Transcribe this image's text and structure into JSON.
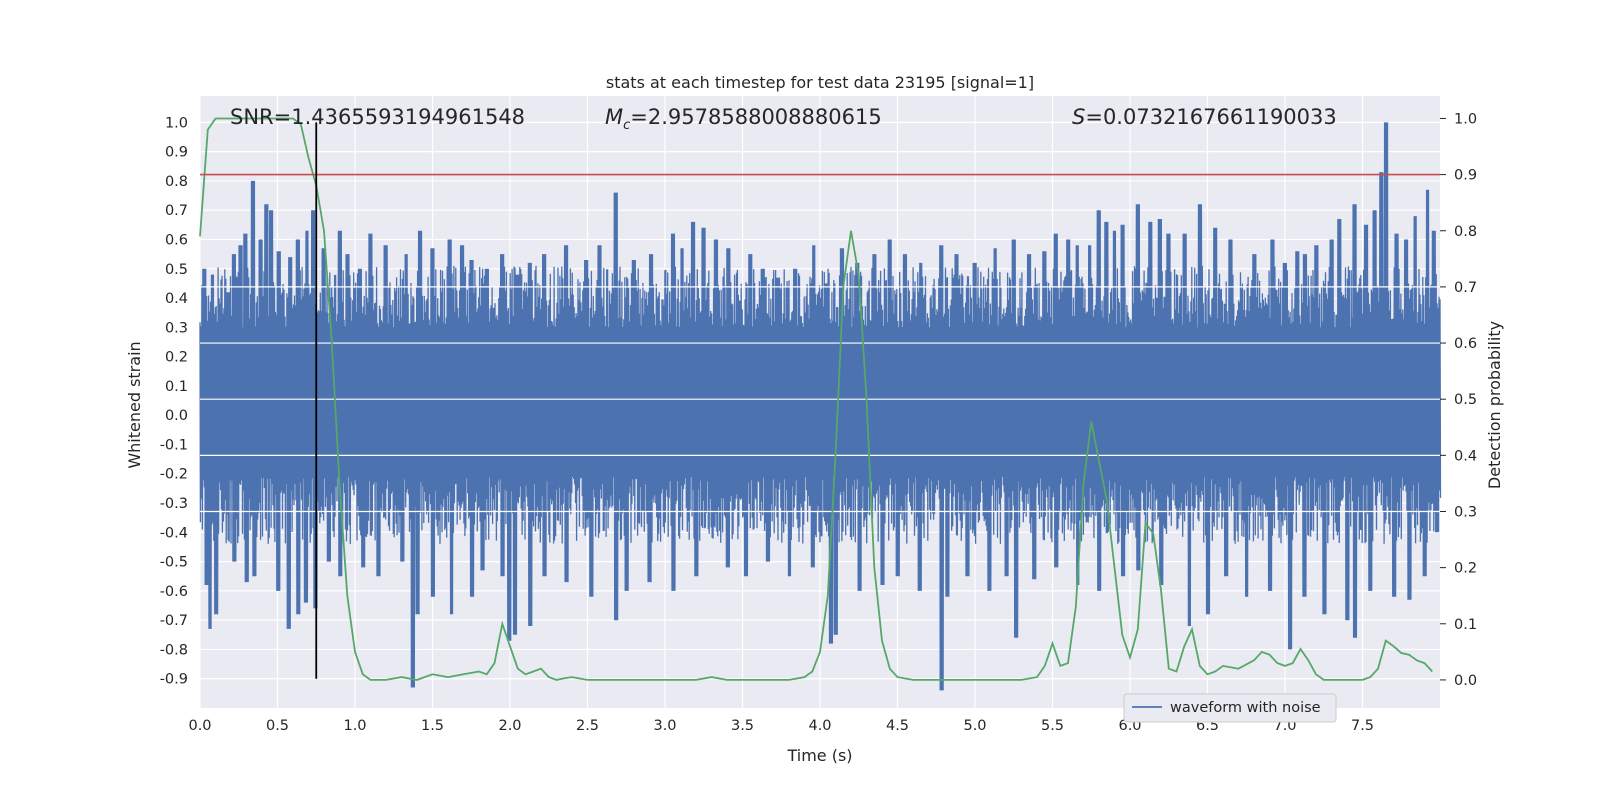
{
  "chart_data": {
    "type": "line",
    "title": "stats at each timestep for test data 23195 [signal=1]",
    "xlabel": "Time (s)",
    "ylabel": "Whitened strain",
    "y2label": "Detection probability",
    "xlim": [
      0.0,
      8.0
    ],
    "ylim": [
      -1.0,
      1.09
    ],
    "y2lim": [
      -0.05,
      1.04
    ],
    "xticks": [
      "0.0",
      "0.5",
      "1.0",
      "1.5",
      "2.0",
      "2.5",
      "3.0",
      "3.5",
      "4.0",
      "4.5",
      "5.0",
      "5.5",
      "6.0",
      "6.5",
      "7.0",
      "7.5"
    ],
    "yticks": [
      "-0.9",
      "-0.8",
      "-0.7",
      "-0.6",
      "-0.5",
      "-0.4",
      "-0.3",
      "-0.2",
      "-0.1",
      "0.0",
      "0.1",
      "0.2",
      "0.3",
      "0.4",
      "0.5",
      "0.6",
      "0.7",
      "0.8",
      "0.9",
      "1.0"
    ],
    "y2ticks": [
      "0.0",
      "0.1",
      "0.2",
      "0.3",
      "0.4",
      "0.5",
      "0.6",
      "0.7",
      "0.8",
      "0.9",
      "1.0"
    ],
    "grid": true,
    "legend": {
      "location": "lower right",
      "entries": [
        "waveform with noise"
      ]
    },
    "annotations": {
      "snr": "SNR=1.4365593194961548",
      "mc_symbol": "M",
      "mc_sub": "c",
      "mc_value": "=2.9578588008880615",
      "s_symbol": "S",
      "s_value": "=0.0732167661190033"
    },
    "threshold_line": {
      "axis": "right",
      "value": 0.9,
      "color": "#c44e52"
    },
    "marker_line": {
      "x": 0.75,
      "y_range": [
        -0.9,
        1.0
      ],
      "color": "#000000"
    },
    "series": [
      {
        "name": "waveform with noise",
        "axis": "left",
        "color": "#4c72b0",
        "duration_s": 8.0,
        "envelope": {
          "upper_typical": 0.45,
          "lower_typical": -0.38,
          "dense_band": [
            -0.15,
            0.24
          ]
        },
        "peaks_upper": [
          [
            0.03,
            0.5
          ],
          [
            0.08,
            0.48
          ],
          [
            0.18,
            0.42
          ],
          [
            0.22,
            0.55
          ],
          [
            0.26,
            0.58
          ],
          [
            0.29,
            0.62
          ],
          [
            0.34,
            0.8
          ],
          [
            0.39,
            0.6
          ],
          [
            0.43,
            0.72
          ],
          [
            0.46,
            0.7
          ],
          [
            0.51,
            0.56
          ],
          [
            0.58,
            0.54
          ],
          [
            0.63,
            0.6
          ],
          [
            0.69,
            0.63
          ],
          [
            0.73,
            0.7
          ],
          [
            0.8,
            0.57
          ],
          [
            0.9,
            0.63
          ],
          [
            0.95,
            0.55
          ],
          [
            1.03,
            0.5
          ],
          [
            1.1,
            0.62
          ],
          [
            1.2,
            0.58
          ],
          [
            1.33,
            0.55
          ],
          [
            1.42,
            0.63
          ],
          [
            1.5,
            0.57
          ],
          [
            1.61,
            0.6
          ],
          [
            1.69,
            0.58
          ],
          [
            1.75,
            0.53
          ],
          [
            1.85,
            0.5
          ],
          [
            1.95,
            0.55
          ],
          [
            2.05,
            0.48
          ],
          [
            2.13,
            0.52
          ],
          [
            2.22,
            0.55
          ],
          [
            2.36,
            0.58
          ],
          [
            2.49,
            0.53
          ],
          [
            2.58,
            0.58
          ],
          [
            2.68,
            0.76
          ],
          [
            2.8,
            0.53
          ],
          [
            2.91,
            0.55
          ],
          [
            3.05,
            0.62
          ],
          [
            3.11,
            0.57
          ],
          [
            3.18,
            0.66
          ],
          [
            3.25,
            0.64
          ],
          [
            3.33,
            0.6
          ],
          [
            3.41,
            0.57
          ],
          [
            3.55,
            0.55
          ],
          [
            3.63,
            0.5
          ],
          [
            3.73,
            0.47
          ],
          [
            3.84,
            0.5
          ],
          [
            3.96,
            0.58
          ],
          [
            4.04,
            0.45
          ],
          [
            4.14,
            0.57
          ],
          [
            4.24,
            0.52
          ],
          [
            4.35,
            0.55
          ],
          [
            4.45,
            0.6
          ],
          [
            4.55,
            0.55
          ],
          [
            4.65,
            0.52
          ],
          [
            4.78,
            0.58
          ],
          [
            4.88,
            0.55
          ],
          [
            5.0,
            0.52
          ],
          [
            5.13,
            0.57
          ],
          [
            5.25,
            0.6
          ],
          [
            5.35,
            0.55
          ],
          [
            5.45,
            0.56
          ],
          [
            5.52,
            0.62
          ],
          [
            5.6,
            0.6
          ],
          [
            5.66,
            0.58
          ],
          [
            5.74,
            0.58
          ],
          [
            5.8,
            0.7
          ],
          [
            5.85,
            0.66
          ],
          [
            5.9,
            0.63
          ],
          [
            5.95,
            0.65
          ],
          [
            6.05,
            0.72
          ],
          [
            6.13,
            0.66
          ],
          [
            6.19,
            0.67
          ],
          [
            6.25,
            0.62
          ],
          [
            6.35,
            0.62
          ],
          [
            6.45,
            0.72
          ],
          [
            6.55,
            0.64
          ],
          [
            6.65,
            0.6
          ],
          [
            6.8,
            0.55
          ],
          [
            6.92,
            0.6
          ],
          [
            7.0,
            0.52
          ],
          [
            7.08,
            0.56
          ],
          [
            7.13,
            0.55
          ],
          [
            7.2,
            0.58
          ],
          [
            7.3,
            0.6
          ],
          [
            7.35,
            0.67
          ],
          [
            7.45,
            0.72
          ],
          [
            7.52,
            0.65
          ],
          [
            7.58,
            0.7
          ],
          [
            7.62,
            0.83
          ],
          [
            7.65,
            1.0
          ],
          [
            7.72,
            0.62
          ],
          [
            7.78,
            0.6
          ],
          [
            7.84,
            0.68
          ],
          [
            7.92,
            0.77
          ],
          [
            7.96,
            0.63
          ]
        ],
        "peaks_lower": [
          [
            0.04,
            -0.58
          ],
          [
            0.06,
            -0.73
          ],
          [
            0.1,
            -0.68
          ],
          [
            0.22,
            -0.5
          ],
          [
            0.3,
            -0.57
          ],
          [
            0.35,
            -0.55
          ],
          [
            0.5,
            -0.6
          ],
          [
            0.57,
            -0.73
          ],
          [
            0.63,
            -0.68
          ],
          [
            0.68,
            -0.64
          ],
          [
            0.74,
            -0.66
          ],
          [
            0.83,
            -0.5
          ],
          [
            0.9,
            -0.55
          ],
          [
            1.05,
            -0.52
          ],
          [
            1.15,
            -0.55
          ],
          [
            1.3,
            -0.5
          ],
          [
            1.37,
            -0.93
          ],
          [
            1.4,
            -0.68
          ],
          [
            1.5,
            -0.62
          ],
          [
            1.62,
            -0.68
          ],
          [
            1.75,
            -0.62
          ],
          [
            1.82,
            -0.53
          ],
          [
            1.95,
            -0.55
          ],
          [
            1.99,
            -0.77
          ],
          [
            2.03,
            -0.75
          ],
          [
            2.13,
            -0.72
          ],
          [
            2.22,
            -0.55
          ],
          [
            2.36,
            -0.57
          ],
          [
            2.52,
            -0.62
          ],
          [
            2.68,
            -0.7
          ],
          [
            2.75,
            -0.6
          ],
          [
            2.9,
            -0.57
          ],
          [
            3.05,
            -0.6
          ],
          [
            3.2,
            -0.55
          ],
          [
            3.4,
            -0.52
          ],
          [
            3.52,
            -0.55
          ],
          [
            3.66,
            -0.5
          ],
          [
            3.8,
            -0.55
          ],
          [
            3.95,
            -0.52
          ],
          [
            4.07,
            -0.78
          ],
          [
            4.1,
            -0.75
          ],
          [
            4.25,
            -0.6
          ],
          [
            4.4,
            -0.58
          ],
          [
            4.5,
            -0.55
          ],
          [
            4.64,
            -0.6
          ],
          [
            4.78,
            -0.94
          ],
          [
            4.82,
            -0.62
          ],
          [
            4.95,
            -0.55
          ],
          [
            5.09,
            -0.6
          ],
          [
            5.2,
            -0.55
          ],
          [
            5.26,
            -0.76
          ],
          [
            5.38,
            -0.56
          ],
          [
            5.52,
            -0.52
          ],
          [
            5.66,
            -0.58
          ],
          [
            5.8,
            -0.6
          ],
          [
            5.95,
            -0.55
          ],
          [
            6.05,
            -0.53
          ],
          [
            6.2,
            -0.58
          ],
          [
            6.38,
            -0.72
          ],
          [
            6.5,
            -0.68
          ],
          [
            6.62,
            -0.55
          ],
          [
            6.75,
            -0.62
          ],
          [
            6.9,
            -0.6
          ],
          [
            7.03,
            -0.8
          ],
          [
            7.12,
            -0.62
          ],
          [
            7.25,
            -0.68
          ],
          [
            7.4,
            -0.7
          ],
          [
            7.45,
            -0.76
          ],
          [
            7.55,
            -0.6
          ],
          [
            7.7,
            -0.62
          ],
          [
            7.8,
            -0.63
          ],
          [
            7.9,
            -0.55
          ],
          [
            7.98,
            -0.4
          ]
        ]
      },
      {
        "name": "",
        "axis": "right",
        "color": "#55a868",
        "x": [
          0.0,
          0.05,
          0.1,
          0.2,
          0.3,
          0.4,
          0.5,
          0.55,
          0.6,
          0.65,
          0.7,
          0.75,
          0.8,
          0.85,
          0.9,
          0.95,
          1.0,
          1.05,
          1.1,
          1.15,
          1.2,
          1.3,
          1.4,
          1.5,
          1.6,
          1.7,
          1.8,
          1.85,
          1.9,
          1.95,
          2.0,
          2.05,
          2.1,
          2.15,
          2.2,
          2.25,
          2.3,
          2.35,
          2.4,
          2.5,
          2.6,
          2.7,
          2.8,
          3.0,
          3.2,
          3.3,
          3.4,
          3.5,
          3.6,
          3.7,
          3.8,
          3.9,
          3.95,
          4.0,
          4.05,
          4.1,
          4.15,
          4.2,
          4.25,
          4.3,
          4.35,
          4.4,
          4.45,
          4.5,
          4.6,
          4.7,
          4.8,
          4.9,
          5.0,
          5.1,
          5.2,
          5.3,
          5.4,
          5.45,
          5.5,
          5.55,
          5.6,
          5.65,
          5.7,
          5.75,
          5.8,
          5.85,
          5.9,
          5.95,
          6.0,
          6.05,
          6.1,
          6.15,
          6.2,
          6.25,
          6.3,
          6.35,
          6.4,
          6.45,
          6.5,
          6.55,
          6.6,
          6.7,
          6.8,
          6.85,
          6.9,
          6.95,
          7.0,
          7.05,
          7.1,
          7.15,
          7.2,
          7.25,
          7.3,
          7.4,
          7.5,
          7.55,
          7.6,
          7.65,
          7.7,
          7.75,
          7.8,
          7.85,
          7.9,
          7.95
        ],
        "y": [
          0.79,
          0.98,
          1.0,
          1.0,
          1.0,
          1.0,
          1.0,
          1.0,
          1.0,
          0.99,
          0.93,
          0.88,
          0.8,
          0.6,
          0.35,
          0.15,
          0.05,
          0.01,
          0.0,
          0.0,
          0.0,
          0.005,
          0.0,
          0.01,
          0.005,
          0.01,
          0.015,
          0.01,
          0.03,
          0.1,
          0.06,
          0.02,
          0.01,
          0.015,
          0.02,
          0.005,
          0.0,
          0.003,
          0.005,
          0.0,
          0.0,
          0.0,
          0.0,
          0.0,
          0.0,
          0.005,
          0.0,
          0.0,
          0.0,
          0.0,
          0.0,
          0.005,
          0.015,
          0.05,
          0.15,
          0.4,
          0.7,
          0.8,
          0.72,
          0.5,
          0.2,
          0.07,
          0.02,
          0.005,
          0.0,
          0.0,
          0.0,
          0.0,
          0.0,
          0.0,
          0.0,
          0.0,
          0.005,
          0.025,
          0.065,
          0.025,
          0.03,
          0.13,
          0.35,
          0.46,
          0.39,
          0.32,
          0.2,
          0.08,
          0.04,
          0.09,
          0.28,
          0.26,
          0.16,
          0.02,
          0.015,
          0.06,
          0.09,
          0.025,
          0.01,
          0.015,
          0.025,
          0.02,
          0.035,
          0.05,
          0.045,
          0.03,
          0.025,
          0.03,
          0.055,
          0.035,
          0.01,
          0.0,
          0.0,
          0.0,
          0.0,
          0.005,
          0.02,
          0.07,
          0.06,
          0.048,
          0.045,
          0.035,
          0.03,
          0.015
        ]
      }
    ]
  }
}
